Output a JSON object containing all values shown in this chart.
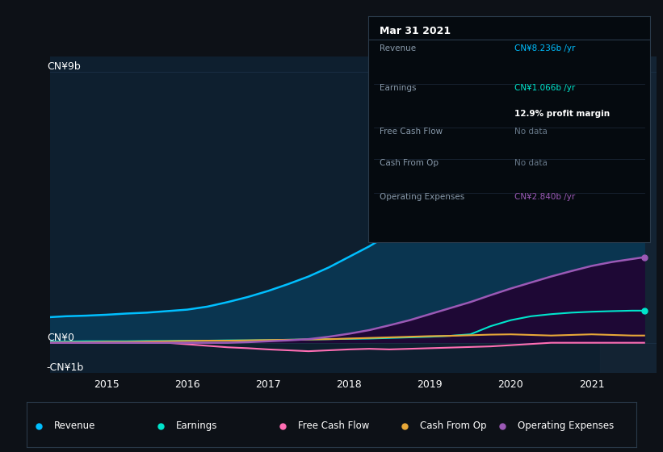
{
  "background_color": "#0d1117",
  "chart_bg_color": "#0e1f2f",
  "title": "Mar 31 2021",
  "ylabel_top": "CN¥9b",
  "ylabel_zero": "CN¥0",
  "ylabel_bottom": "-CN¥1b",
  "x_years": [
    2013.8,
    2014.0,
    2014.25,
    2014.5,
    2014.75,
    2015.0,
    2015.25,
    2015.5,
    2015.75,
    2016.0,
    2016.25,
    2016.5,
    2016.75,
    2017.0,
    2017.25,
    2017.5,
    2017.75,
    2018.0,
    2018.25,
    2018.5,
    2018.75,
    2019.0,
    2019.25,
    2019.5,
    2019.75,
    2020.0,
    2020.25,
    2020.5,
    2020.75,
    2021.0,
    2021.15
  ],
  "revenue": [
    0.85,
    0.88,
    0.9,
    0.93,
    0.97,
    1.0,
    1.05,
    1.1,
    1.2,
    1.35,
    1.52,
    1.72,
    1.95,
    2.2,
    2.5,
    2.85,
    3.2,
    3.6,
    4.0,
    4.42,
    4.8,
    5.2,
    5.55,
    5.85,
    6.15,
    6.45,
    6.8,
    7.15,
    7.55,
    7.95,
    8.236
  ],
  "earnings": [
    0.04,
    0.04,
    0.05,
    0.05,
    0.05,
    0.06,
    0.06,
    0.07,
    0.07,
    0.08,
    0.08,
    0.09,
    0.1,
    0.11,
    0.12,
    0.13,
    0.14,
    0.16,
    0.18,
    0.2,
    0.23,
    0.28,
    0.55,
    0.75,
    0.88,
    0.95,
    1.0,
    1.03,
    1.05,
    1.066,
    1.066
  ],
  "free_cash_flow": [
    0.0,
    0.0,
    0.0,
    0.0,
    0.0,
    0.0,
    0.0,
    -0.05,
    -0.1,
    -0.15,
    -0.18,
    -0.22,
    -0.25,
    -0.28,
    -0.25,
    -0.22,
    -0.2,
    -0.22,
    -0.2,
    -0.18,
    -0.16,
    -0.14,
    -0.12,
    -0.08,
    -0.04,
    0.0,
    0.0,
    0.0,
    0.0,
    0.0,
    0.0
  ],
  "cash_from_op": [
    0.01,
    0.02,
    0.02,
    0.03,
    0.03,
    0.04,
    0.05,
    0.06,
    0.07,
    0.07,
    0.08,
    0.09,
    0.1,
    0.11,
    0.12,
    0.14,
    0.16,
    0.18,
    0.2,
    0.22,
    0.23,
    0.25,
    0.27,
    0.28,
    0.26,
    0.24,
    0.26,
    0.28,
    0.26,
    0.24,
    0.24
  ],
  "operating_expenses": [
    0.0,
    0.0,
    0.0,
    0.0,
    0.0,
    0.0,
    0.0,
    0.0,
    0.0,
    0.0,
    0.02,
    0.05,
    0.08,
    0.12,
    0.2,
    0.3,
    0.42,
    0.58,
    0.75,
    0.95,
    1.15,
    1.35,
    1.58,
    1.8,
    2.0,
    2.2,
    2.38,
    2.55,
    2.68,
    2.78,
    2.84
  ],
  "revenue_color": "#00bfff",
  "earnings_color": "#00e5cc",
  "free_cash_flow_color": "#ff6eb4",
  "cash_from_op_color": "#e8a838",
  "operating_expenses_color": "#9b59b6",
  "revenue_fill_color": "#0a3550",
  "op_exp_fill_color": "#1e0835",
  "ylim_min": -1.0,
  "ylim_max": 9.5,
  "xlim_min": 2013.8,
  "xlim_max": 2021.3,
  "x_ticks": [
    2014.5,
    2015.5,
    2016.5,
    2017.5,
    2018.5,
    2019.5,
    2020.5
  ],
  "x_tick_labels": [
    "2015",
    "2016",
    "2017",
    "2018",
    "2019",
    "2020",
    "2021"
  ],
  "highlight_x_start": 2020.6,
  "highlight_x_end": 2021.3,
  "tooltip_rows": [
    {
      "label": "Revenue",
      "value": "CN¥8.236b /yr",
      "value_color": "#00bfff",
      "sub": null
    },
    {
      "label": "Earnings",
      "value": "CN¥1.066b /yr",
      "value_color": "#00e5cc",
      "sub": "12.9% profit margin"
    },
    {
      "label": "Free Cash Flow",
      "value": "No data",
      "value_color": "#667788",
      "sub": null
    },
    {
      "label": "Cash From Op",
      "value": "No data",
      "value_color": "#667788",
      "sub": null
    },
    {
      "label": "Operating Expenses",
      "value": "CN¥2.840b /yr",
      "value_color": "#9b59b6",
      "sub": null
    }
  ],
  "legend_labels": [
    "Revenue",
    "Earnings",
    "Free Cash Flow",
    "Cash From Op",
    "Operating Expenses"
  ],
  "legend_colors": [
    "#00bfff",
    "#00e5cc",
    "#ff6eb4",
    "#e8a838",
    "#9b59b6"
  ]
}
